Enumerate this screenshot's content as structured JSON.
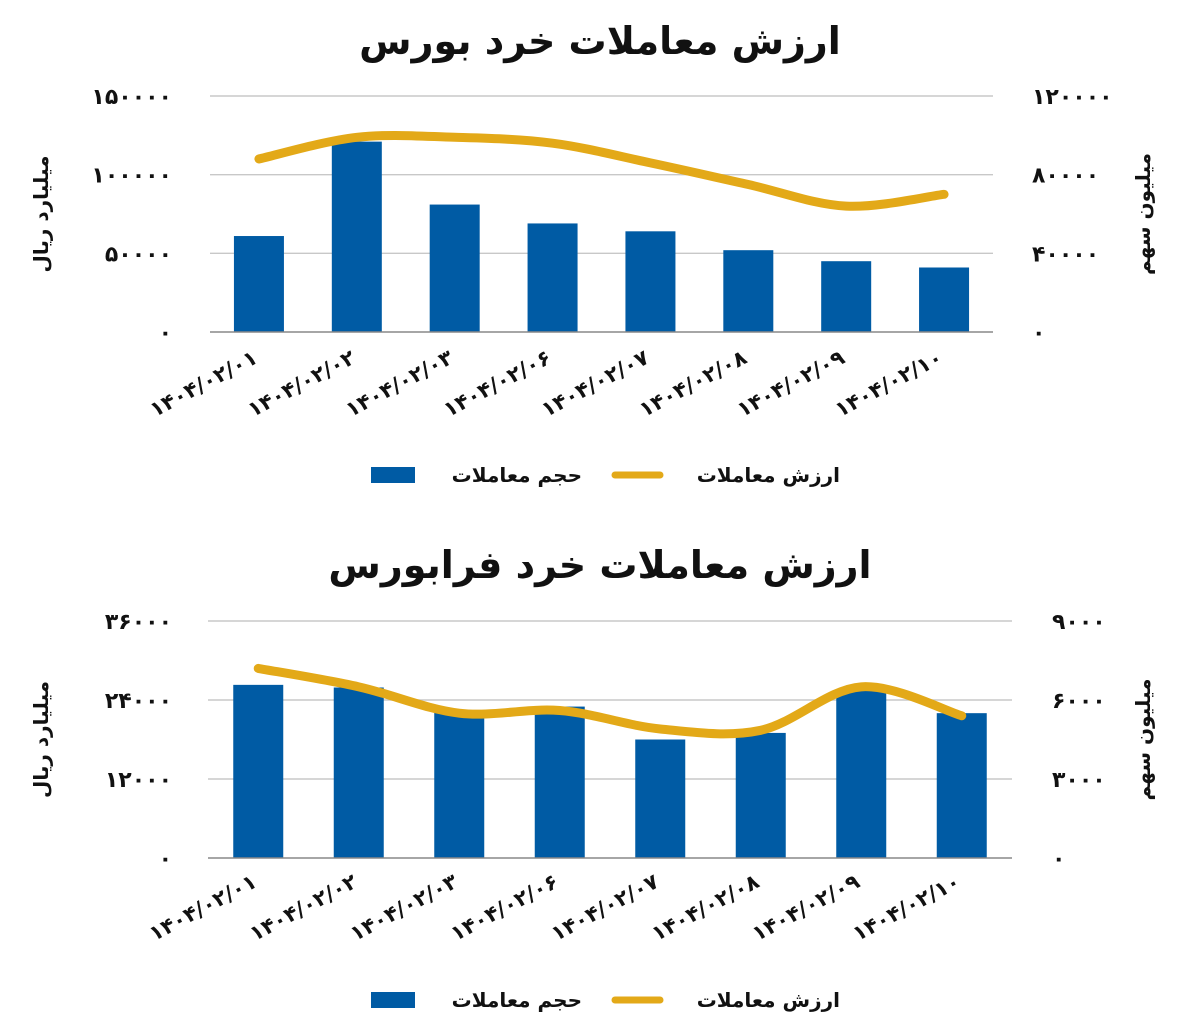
{
  "chart_data": [
    {
      "type": "bar",
      "title": "ارزش معاملات خرد بورس",
      "ylabel": "میلیارد ریال",
      "ylabel_right": "میلیون سهم",
      "categories": [
        "۱۴۰۴/۰۲/۰۱",
        "۱۴۰۴/۰۲/۰۲",
        "۱۴۰۴/۰۲/۰۳",
        "۱۴۰۴/۰۲/۰۶",
        "۱۴۰۴/۰۲/۰۷",
        "۱۴۰۴/۰۲/۰۸",
        "۱۴۰۴/۰۲/۰۹",
        "۱۴۰۴/۰۲/۱۰"
      ],
      "ylim": [
        0,
        150000
      ],
      "yticks": [
        "۰",
        "۵۰۰۰۰",
        "۱۰۰۰۰۰",
        "۱۵۰۰۰۰"
      ],
      "y2lim": [
        0,
        120000
      ],
      "y2ticks": [
        "۰",
        "۴۰۰۰۰",
        "۸۰۰۰۰",
        "۱۲۰۰۰۰"
      ],
      "grid": true,
      "legend_position": "bottom",
      "series": [
        {
          "name": "حجم معاملات",
          "kind": "bar",
          "axis": "left",
          "color": "#005BA4",
          "values": [
            61000,
            121000,
            81000,
            69000,
            64000,
            52000,
            45000,
            41000
          ]
        },
        {
          "name": "ارزش معاملات",
          "kind": "line",
          "axis": "right",
          "color": "#E3A918",
          "values": [
            88000,
            99000,
            99000,
            96000,
            86000,
            75000,
            64000,
            70000
          ]
        }
      ]
    },
    {
      "type": "bar",
      "title": "ارزش معاملات خرد فرابورس",
      "ylabel": "میلیارد ریال",
      "ylabel_right": "میلیون سهم",
      "categories": [
        "۱۴۰۴/۰۲/۰۱",
        "۱۴۰۴/۰۲/۰۲",
        "۱۴۰۴/۰۲/۰۳",
        "۱۴۰۴/۰۲/۰۶",
        "۱۴۰۴/۰۲/۰۷",
        "۱۴۰۴/۰۲/۰۸",
        "۱۴۰۴/۰۲/۰۹",
        "۱۴۰۴/۰۲/۱۰"
      ],
      "ylim": [
        0,
        36000
      ],
      "yticks": [
        "۰",
        "۱۲۰۰۰",
        "۲۴۰۰۰",
        "۳۶۰۰۰"
      ],
      "y2lim": [
        0,
        9000
      ],
      "y2ticks": [
        "۰",
        "۳۰۰۰",
        "۶۰۰۰",
        "۹۰۰۰"
      ],
      "grid": true,
      "legend_position": "bottom",
      "series": [
        {
          "name": "حجم معاملات",
          "kind": "bar",
          "axis": "left",
          "color": "#005BA4",
          "values": [
            26300,
            25900,
            22400,
            23000,
            18000,
            19000,
            25400,
            22000
          ]
        },
        {
          "name": "ارزش معاملات",
          "kind": "line",
          "axis": "right",
          "color": "#E3A918",
          "values": [
            7200,
            6500,
            5500,
            5600,
            4900,
            4850,
            6500,
            5400
          ]
        }
      ]
    }
  ]
}
